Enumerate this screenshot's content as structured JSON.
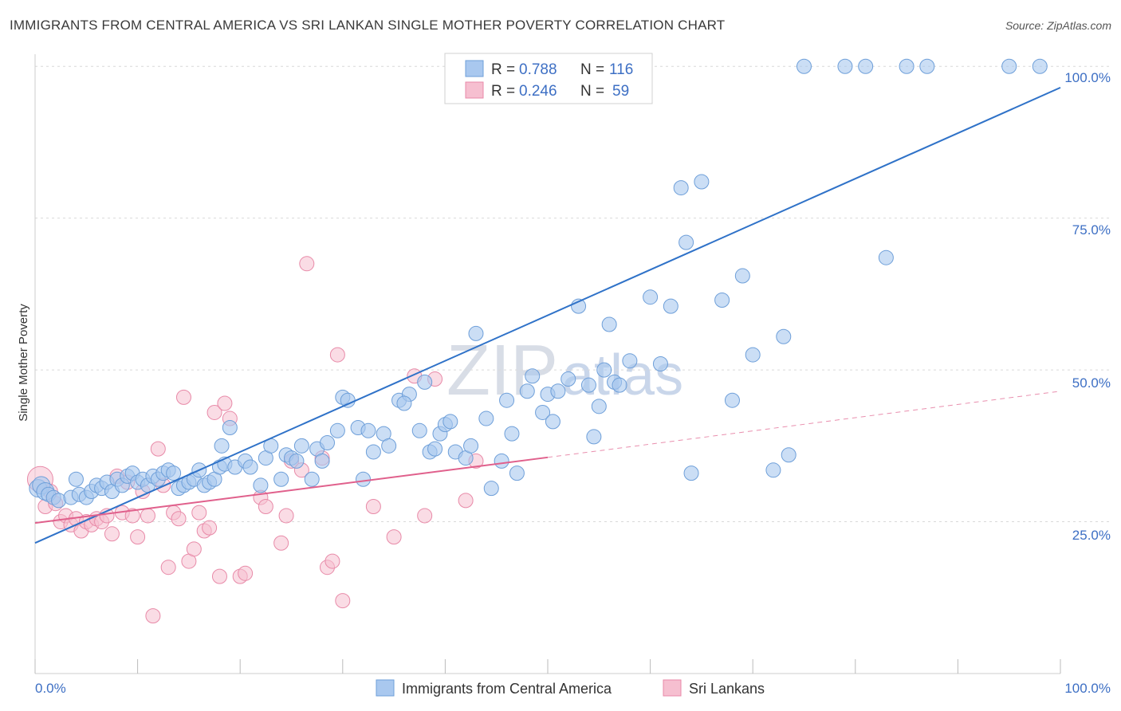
{
  "header": {
    "title": "IMMIGRANTS FROM CENTRAL AMERICA VS SRI LANKAN SINGLE MOTHER POVERTY CORRELATION CHART",
    "source": "Source: ZipAtlas.com"
  },
  "watermark": {
    "zip": "ZIP",
    "atlas": "atlas"
  },
  "legend_top": {
    "rows": [
      {
        "r_label": "R =",
        "r_value": "0.788",
        "n_label": "N =",
        "n_value": "116"
      },
      {
        "r_label": "R =",
        "r_value": "0.246",
        "n_label": "N =",
        "n_value": "59"
      }
    ]
  },
  "legend_bottom": {
    "items": [
      {
        "label": "Immigrants from Central America"
      },
      {
        "label": "Sri Lankans"
      }
    ]
  },
  "colors": {
    "blue_fill": "#a9c8ef",
    "blue_stroke": "#6e9fd9",
    "blue_line": "#2f72c8",
    "pink_fill": "#f6bfd0",
    "pink_stroke": "#e88aa8",
    "pink_line": "#e0608c",
    "grid": "#d9d9d9",
    "tick_text": "#3d6fc4"
  },
  "chart_data": {
    "type": "scatter",
    "title": "IMMIGRANTS FROM CENTRAL AMERICA VS SRI LANKAN SINGLE MOTHER POVERTY CORRELATION CHART",
    "xlabel": "",
    "ylabel": "Single Mother Poverty",
    "xlim": [
      0,
      100
    ],
    "ylim": [
      0,
      102
    ],
    "x_tick_labels": [
      "0.0%",
      "100.0%"
    ],
    "y_ticks": [
      25,
      50,
      75,
      100
    ],
    "y_tick_labels": [
      "25.0%",
      "50.0%",
      "75.0%",
      "100.0%"
    ],
    "grid": true,
    "legend_position": "top-center",
    "series": [
      {
        "name": "Immigrants from Central America",
        "r": 0.788,
        "n": 116,
        "trend": {
          "x": [
            0,
            100
          ],
          "y": [
            21.5,
            96.5
          ],
          "style": "solid"
        },
        "points": [
          [
            0.3,
            30.5
          ],
          [
            0.6,
            31
          ],
          [
            1,
            30
          ],
          [
            1.3,
            29.5
          ],
          [
            1.8,
            29
          ],
          [
            2.3,
            28.5
          ],
          [
            3.5,
            29
          ],
          [
            4,
            32
          ],
          [
            4.3,
            29.5
          ],
          [
            5,
            29
          ],
          [
            5.5,
            30
          ],
          [
            6,
            31
          ],
          [
            6.5,
            30.5
          ],
          [
            7,
            31.5
          ],
          [
            7.5,
            30
          ],
          [
            8,
            32
          ],
          [
            8.5,
            31
          ],
          [
            9,
            32.5
          ],
          [
            9.5,
            33
          ],
          [
            10,
            31.5
          ],
          [
            10.5,
            32
          ],
          [
            11,
            31
          ],
          [
            11.5,
            32.5
          ],
          [
            12,
            32
          ],
          [
            12.5,
            33
          ],
          [
            13,
            33.5
          ],
          [
            13.5,
            33
          ],
          [
            14,
            30.5
          ],
          [
            14.5,
            31
          ],
          [
            15,
            31.5
          ],
          [
            15.5,
            32
          ],
          [
            16,
            33.5
          ],
          [
            16.5,
            31
          ],
          [
            17,
            31.5
          ],
          [
            17.5,
            32
          ],
          [
            18,
            34
          ],
          [
            18.5,
            34.5
          ],
          [
            18.2,
            37.5
          ],
          [
            19,
            40.5
          ],
          [
            19.5,
            34
          ],
          [
            20.5,
            35
          ],
          [
            21,
            34
          ],
          [
            22,
            31
          ],
          [
            22.5,
            35.5
          ],
          [
            23,
            37.5
          ],
          [
            24,
            32
          ],
          [
            24.5,
            36
          ],
          [
            25,
            35.5
          ],
          [
            25.5,
            35
          ],
          [
            26,
            37.5
          ],
          [
            27,
            32
          ],
          [
            27.5,
            37
          ],
          [
            28,
            35
          ],
          [
            28.5,
            38
          ],
          [
            29.5,
            40
          ],
          [
            30,
            45.5
          ],
          [
            30.5,
            45
          ],
          [
            31.5,
            40.5
          ],
          [
            32,
            32
          ],
          [
            32.5,
            40
          ],
          [
            33,
            36.5
          ],
          [
            34,
            39.5
          ],
          [
            34.5,
            37.5
          ],
          [
            35.5,
            45
          ],
          [
            36.5,
            46
          ],
          [
            36,
            44.5
          ],
          [
            37.5,
            40
          ],
          [
            38,
            48
          ],
          [
            38.5,
            36.5
          ],
          [
            39,
            37
          ],
          [
            39.5,
            39.5
          ],
          [
            40,
            41
          ],
          [
            40.5,
            41.5
          ],
          [
            41,
            36.5
          ],
          [
            42,
            35.5
          ],
          [
            42.5,
            37.5
          ],
          [
            43,
            56
          ],
          [
            44,
            42
          ],
          [
            44.5,
            30.5
          ],
          [
            45.5,
            35
          ],
          [
            46,
            45
          ],
          [
            46.5,
            39.5
          ],
          [
            47,
            33
          ],
          [
            48,
            46.5
          ],
          [
            48.5,
            49
          ],
          [
            49.5,
            43
          ],
          [
            50,
            46
          ],
          [
            50.5,
            41.5
          ],
          [
            51,
            46.5
          ],
          [
            52,
            48.5
          ],
          [
            53,
            60.5
          ],
          [
            54,
            47.5
          ],
          [
            54.5,
            39
          ],
          [
            55,
            44
          ],
          [
            55.5,
            50
          ],
          [
            56,
            57.5
          ],
          [
            56.5,
            48
          ],
          [
            57,
            47.5
          ],
          [
            58,
            51.5
          ],
          [
            60,
            62
          ],
          [
            61,
            51
          ],
          [
            62,
            60.5
          ],
          [
            63,
            80
          ],
          [
            63.5,
            71
          ],
          [
            64,
            33
          ],
          [
            65,
            81
          ],
          [
            67,
            61.5
          ],
          [
            68,
            45
          ],
          [
            69,
            65.5
          ],
          [
            70,
            52.5
          ],
          [
            72,
            33.5
          ],
          [
            73,
            55.5
          ],
          [
            73.5,
            36
          ],
          [
            75,
            100
          ],
          [
            79,
            100
          ],
          [
            81,
            100
          ],
          [
            83,
            68.5
          ],
          [
            85,
            100
          ],
          [
            87,
            100
          ],
          [
            95,
            100
          ],
          [
            98,
            100
          ]
        ]
      },
      {
        "name": "Sri Lankans",
        "r": 0.246,
        "n": 59,
        "trend_solid": {
          "x": [
            0,
            50
          ],
          "y": [
            24.8,
            35.6
          ]
        },
        "trend_dashed": {
          "x": [
            50,
            100
          ],
          "y": [
            35.6,
            46.5
          ]
        },
        "points": [
          [
            0.5,
            32
          ],
          [
            1,
            27.5
          ],
          [
            1.5,
            30
          ],
          [
            2,
            28
          ],
          [
            2.5,
            25
          ],
          [
            3,
            26
          ],
          [
            3.5,
            24.5
          ],
          [
            4,
            25.5
          ],
          [
            4.5,
            23.5
          ],
          [
            5,
            25
          ],
          [
            5.5,
            24.5
          ],
          [
            6,
            25.5
          ],
          [
            6.5,
            25
          ],
          [
            7,
            26
          ],
          [
            7.5,
            23
          ],
          [
            8,
            32.5
          ],
          [
            8.5,
            26.5
          ],
          [
            9,
            31.5
          ],
          [
            9.5,
            26
          ],
          [
            10,
            22.5
          ],
          [
            10.5,
            30
          ],
          [
            11,
            26
          ],
          [
            11.5,
            9.5
          ],
          [
            12,
            37
          ],
          [
            12.5,
            31
          ],
          [
            13,
            17.5
          ],
          [
            13.5,
            26.5
          ],
          [
            14,
            25.5
          ],
          [
            14.5,
            45.5
          ],
          [
            15,
            18.5
          ],
          [
            15.5,
            20.5
          ],
          [
            16,
            26.5
          ],
          [
            16.5,
            23.5
          ],
          [
            17,
            24
          ],
          [
            17.5,
            43
          ],
          [
            18,
            16
          ],
          [
            18.5,
            44.5
          ],
          [
            19,
            42
          ],
          [
            20,
            16
          ],
          [
            20.5,
            16.5
          ],
          [
            22,
            29
          ],
          [
            22.5,
            27.5
          ],
          [
            24,
            21.5
          ],
          [
            24.5,
            26
          ],
          [
            25,
            35
          ],
          [
            26,
            33.5
          ],
          [
            26.5,
            67.5
          ],
          [
            28,
            35.5
          ],
          [
            28.5,
            17.5
          ],
          [
            29,
            18.5
          ],
          [
            29.5,
            52.5
          ],
          [
            30,
            12
          ],
          [
            33,
            27.5
          ],
          [
            35,
            22.5
          ],
          [
            37,
            49
          ],
          [
            38,
            26
          ],
          [
            39,
            48.5
          ],
          [
            42,
            28.5
          ],
          [
            43,
            35
          ]
        ]
      }
    ]
  }
}
